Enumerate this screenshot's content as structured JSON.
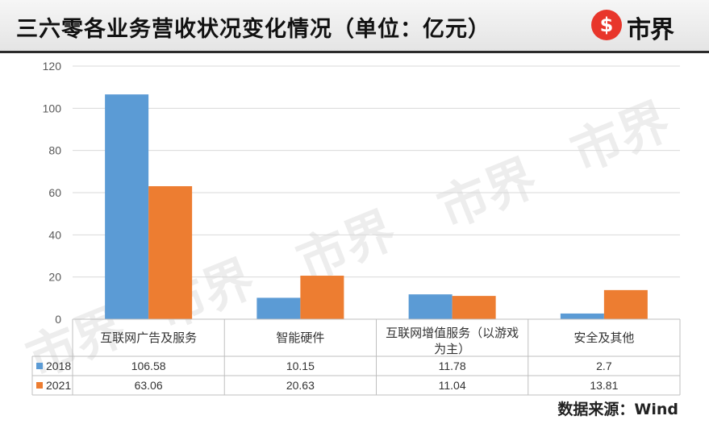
{
  "header": {
    "title": "三六零各业务营收状况变化情况（单位：亿元）",
    "logo_mark": "$",
    "logo_text": "市界"
  },
  "watermark_text": "市界",
  "source": "数据来源：Wind",
  "colors": {
    "2018": "#5b9bd5",
    "2021": "#ed7d31"
  },
  "chart_data": {
    "type": "bar",
    "title": "三六零各业务营收状况变化情况（单位：亿元）",
    "xlabel": "",
    "ylabel": "",
    "ylim": [
      0,
      120
    ],
    "yticks": [
      0,
      20,
      40,
      60,
      80,
      100,
      120
    ],
    "grid": true,
    "legend": "table-left",
    "categories": [
      [
        "互联网广告及服务"
      ],
      [
        "智能硬件"
      ],
      [
        "互联网增值服务（以游戏",
        "为主）"
      ],
      [
        "安全及其他"
      ]
    ],
    "series": [
      {
        "name": "2018",
        "values": [
          106.58,
          10.15,
          11.78,
          2.7
        ],
        "labels": [
          "106.58",
          "10.15",
          "11.78",
          "2.7"
        ],
        "color": "#5b9bd5"
      },
      {
        "name": "2021",
        "values": [
          63.06,
          20.63,
          11.04,
          13.81
        ],
        "labels": [
          "63.06",
          "20.63",
          "11.04",
          "13.81"
        ],
        "color": "#ed7d31"
      }
    ]
  }
}
